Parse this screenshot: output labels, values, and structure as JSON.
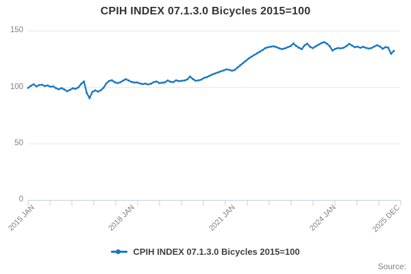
{
  "title": "CPIH INDEX 07.1.3.0 Bicycles 2015=100",
  "source_label": "Source:",
  "legend": {
    "label": "CPIH INDEX 07.1.3.0 Bicycles 2015=100"
  },
  "colors": {
    "line": "#1878c0",
    "grid": "#e6e6e6",
    "axis": "#c3ced9",
    "tick_label": "#7f7f7f",
    "title": "#333333",
    "legend_text": "#414042",
    "source_text": "#7f7f7f",
    "background": "#ffffff"
  },
  "chart_data": {
    "type": "line",
    "title": "CPIH INDEX 07.1.3.0 Bicycles 2015=100",
    "series_name": "CPIH INDEX 07.1.3.0 Bicycles 2015=100",
    "frequency": "monthly",
    "x_start": "2015 JAN",
    "x_end": "2025 DEC",
    "xlabel": "",
    "ylabel": "",
    "ylim": [
      0,
      150
    ],
    "y_ticks": [
      0,
      50,
      100,
      150
    ],
    "grid": "horizontal",
    "legend_position": "bottom-center",
    "x_tick_labels": [
      {
        "label": "2015 JAN",
        "month_index": 0
      },
      {
        "label": "2018 JAN",
        "month_index": 36
      },
      {
        "label": "2021 JAN",
        "month_index": 72
      },
      {
        "label": "2024 JAN",
        "month_index": 108
      },
      {
        "label": "2025 DEC",
        "month_index": 131
      }
    ],
    "values": [
      99.6,
      101.4,
      102.8,
      100.9,
      102.1,
      102.3,
      101.2,
      101.7,
      100.6,
      100.9,
      99.3,
      98.3,
      99.4,
      98.1,
      96.6,
      97.8,
      99.2,
      98.7,
      100.0,
      103.1,
      105.3,
      95.2,
      90.4,
      96.0,
      97.3,
      96.3,
      97.4,
      99.6,
      103.4,
      105.7,
      106.3,
      104.6,
      103.8,
      104.4,
      106.0,
      107.3,
      106.1,
      104.9,
      104.3,
      104.4,
      103.6,
      102.9,
      103.4,
      102.6,
      103.3,
      104.7,
      105.2,
      103.9,
      104.1,
      104.4,
      106.1,
      105.0,
      104.7,
      106.3,
      105.5,
      105.8,
      106.1,
      107.1,
      109.6,
      107.4,
      105.9,
      106.2,
      106.9,
      108.4,
      109.1,
      110.3,
      111.4,
      112.4,
      113.3,
      114.2,
      115.0,
      116.0,
      115.6,
      114.8,
      115.5,
      117.6,
      119.6,
      121.6,
      123.6,
      125.6,
      127.2,
      128.7,
      130.2,
      131.6,
      133.1,
      134.9,
      135.6,
      136.1,
      136.4,
      135.6,
      134.6,
      133.9,
      134.6,
      135.6,
      136.6,
      138.9,
      136.8,
      135.2,
      133.9,
      137.2,
      138.8,
      135.9,
      134.8,
      136.4,
      137.8,
      139.2,
      140.2,
      138.8,
      136.6,
      132.7,
      134.1,
      134.9,
      134.6,
      135.1,
      136.6,
      138.6,
      137.1,
      135.6,
      136.1,
      135.1,
      136.0,
      135.0,
      134.4,
      134.9,
      136.2,
      137.4,
      136.2,
      134.2,
      135.7,
      135.2,
      129.8,
      132.4
    ]
  }
}
